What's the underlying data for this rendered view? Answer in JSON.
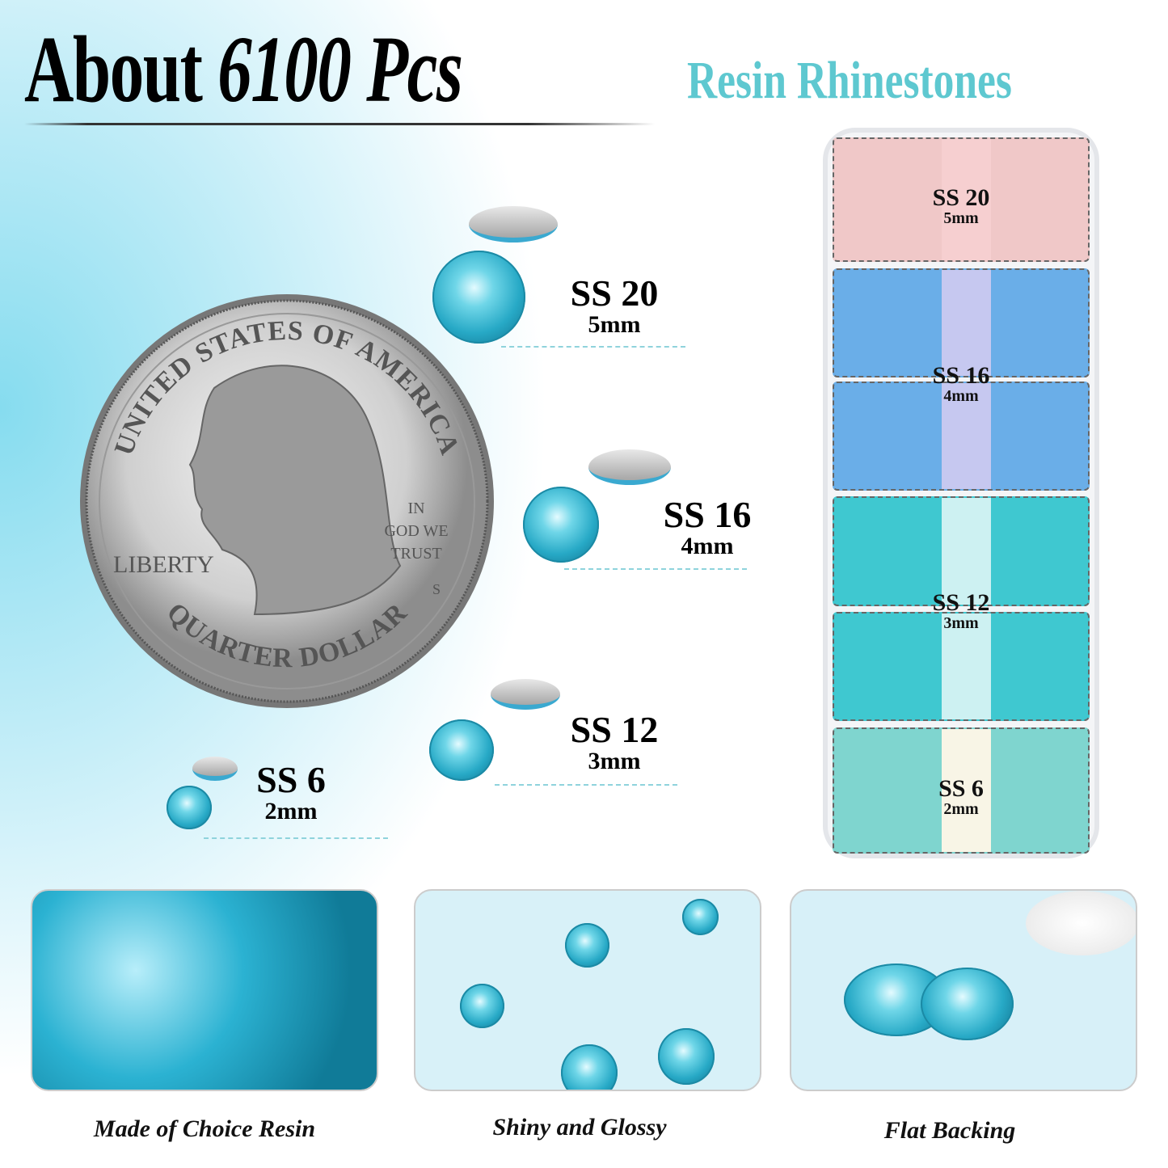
{
  "header": {
    "title_prefix": "About",
    "title_count": "6100 Pcs",
    "subtitle": "Resin Rhinestones"
  },
  "coin": {
    "top_text": "UNITED STATES OF AMERICA",
    "motto": [
      "IN",
      "GOD WE",
      "TRUST"
    ],
    "liberty": "LIBERTY",
    "mint": "S",
    "bottom_text": "QUARTER DOLLAR"
  },
  "sizes": [
    {
      "label": "SS 20",
      "mm": "5mm"
    },
    {
      "label": "SS 16",
      "mm": "4mm"
    },
    {
      "label": "SS 12",
      "mm": "3mm"
    },
    {
      "label": "SS 6",
      "mm": "2mm"
    }
  ],
  "box": [
    {
      "label": "SS 20",
      "mm": "5mm",
      "color": "#f4c9c9",
      "strip": "#f6cfd0"
    },
    {
      "label": "SS 16",
      "mm": "4mm",
      "color": "#6aaee8",
      "strip": "#c6c8f0"
    },
    {
      "label": "SS 12",
      "mm": "3mm",
      "color": "#3fc8d0",
      "strip": "#cdf1f2"
    },
    {
      "label": "SS 6",
      "mm": "2mm",
      "color": "#7fd5cf",
      "strip": "#f8f5e6"
    }
  ],
  "features": [
    {
      "caption": "Made of Choice Resin"
    },
    {
      "caption": "Shiny and Glossy"
    },
    {
      "caption": "Flat Backing"
    }
  ]
}
